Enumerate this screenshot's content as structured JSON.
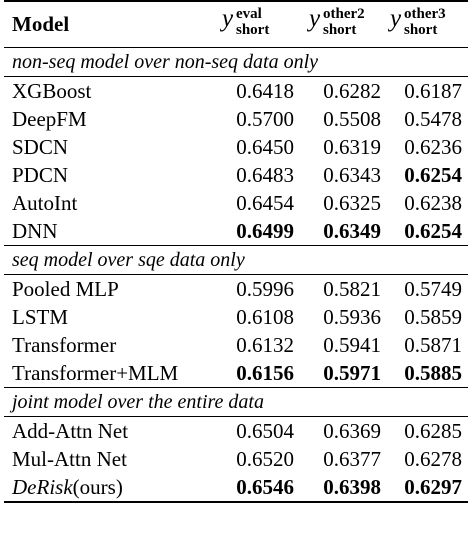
{
  "table": {
    "header": {
      "model": "Model",
      "cols": [
        {
          "symbol": "y",
          "sup": "eval",
          "sub": "short"
        },
        {
          "symbol": "y",
          "sup": "other2",
          "sub": "short"
        },
        {
          "symbol": "y",
          "sup": "other3",
          "sub": "short"
        }
      ]
    },
    "sections": [
      {
        "title": "non-seq model over non-seq data only",
        "rows": [
          {
            "model": "XGBoost",
            "v": [
              "0.6418",
              "0.6282",
              "0.6187"
            ],
            "bold": [
              false,
              false,
              false
            ]
          },
          {
            "model": "DeepFM",
            "v": [
              "0.5700",
              "0.5508",
              "0.5478"
            ],
            "bold": [
              false,
              false,
              false
            ]
          },
          {
            "model": "SDCN",
            "v": [
              "0.6450",
              "0.6319",
              "0.6236"
            ],
            "bold": [
              false,
              false,
              false
            ]
          },
          {
            "model": "PDCN",
            "v": [
              "0.6483",
              "0.6343",
              "0.6254"
            ],
            "bold": [
              false,
              false,
              true
            ]
          },
          {
            "model": "AutoInt",
            "v": [
              "0.6454",
              "0.6325",
              "0.6238"
            ],
            "bold": [
              false,
              false,
              false
            ]
          },
          {
            "model": "DNN",
            "v": [
              "0.6499",
              "0.6349",
              "0.6254"
            ],
            "bold": [
              true,
              true,
              true
            ]
          }
        ]
      },
      {
        "title": "seq model over sqe data only",
        "rows": [
          {
            "model": "Pooled MLP",
            "v": [
              "0.5996",
              "0.5821",
              "0.5749"
            ],
            "bold": [
              false,
              false,
              false
            ]
          },
          {
            "model": "LSTM",
            "v": [
              "0.6108",
              "0.5936",
              "0.5859"
            ],
            "bold": [
              false,
              false,
              false
            ]
          },
          {
            "model": "Transformer",
            "v": [
              "0.6132",
              "0.5941",
              "0.5871"
            ],
            "bold": [
              false,
              false,
              false
            ]
          },
          {
            "model": "Transformer+MLM",
            "v": [
              "0.6156",
              "0.5971",
              "0.5885"
            ],
            "bold": [
              true,
              true,
              true
            ]
          }
        ]
      },
      {
        "title": "joint model over the entire data",
        "rows": [
          {
            "model": "Add-Attn Net",
            "v": [
              "0.6504",
              "0.6369",
              "0.6285"
            ],
            "bold": [
              false,
              false,
              false
            ]
          },
          {
            "model": "Mul-Attn Net",
            "v": [
              "0.6520",
              "0.6377",
              "0.6278"
            ],
            "bold": [
              false,
              false,
              false
            ]
          },
          {
            "model_italic": "DeRisk",
            "model_suffix": "(ours)",
            "v": [
              "0.6546",
              "0.6398",
              "0.6297"
            ],
            "bold": [
              true,
              true,
              true
            ]
          }
        ]
      }
    ]
  }
}
